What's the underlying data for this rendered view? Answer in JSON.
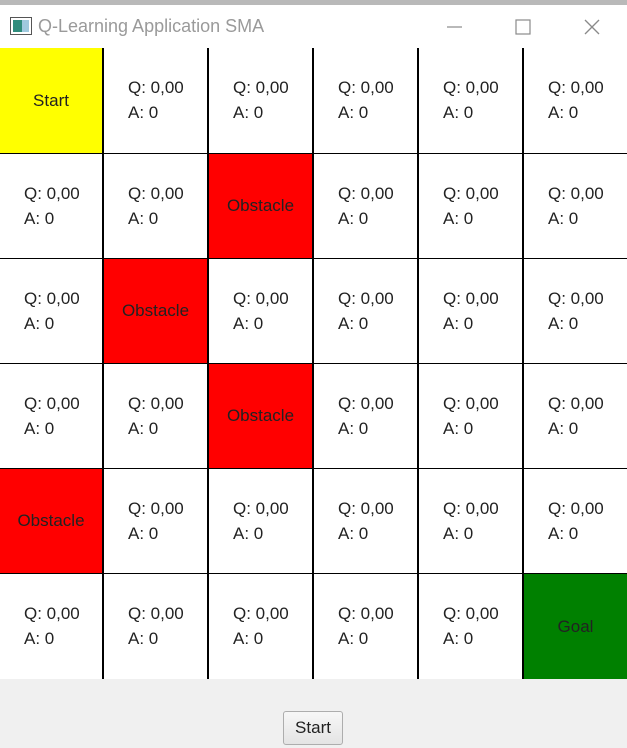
{
  "window": {
    "title": "Q-Learning Application SMA",
    "icon": "app-window-icon",
    "controls": [
      "minimize-icon",
      "maximize-icon",
      "close-icon"
    ]
  },
  "colors": {
    "start": "#ffff00",
    "obstacle": "#ff0000",
    "goal": "#008000",
    "empty": "#ffffff",
    "grid_lines": "#000000"
  },
  "grid": {
    "rows": [
      [
        {
          "type": "start",
          "label": "Start"
        },
        {
          "type": "empty",
          "q": "Q: 0,00",
          "a": "A: 0"
        },
        {
          "type": "empty",
          "q": "Q: 0,00",
          "a": "A: 0"
        },
        {
          "type": "empty",
          "q": "Q: 0,00",
          "a": "A: 0"
        },
        {
          "type": "empty",
          "q": "Q: 0,00",
          "a": "A: 0"
        },
        {
          "type": "empty",
          "q": "Q: 0,00",
          "a": "A: 0"
        }
      ],
      [
        {
          "type": "empty",
          "q": "Q: 0,00",
          "a": "A: 0"
        },
        {
          "type": "empty",
          "q": "Q: 0,00",
          "a": "A: 0"
        },
        {
          "type": "obstacle",
          "label": "Obstacle"
        },
        {
          "type": "empty",
          "q": "Q: 0,00",
          "a": "A: 0"
        },
        {
          "type": "empty",
          "q": "Q: 0,00",
          "a": "A: 0"
        },
        {
          "type": "empty",
          "q": "Q: 0,00",
          "a": "A: 0"
        }
      ],
      [
        {
          "type": "empty",
          "q": "Q: 0,00",
          "a": "A: 0"
        },
        {
          "type": "obstacle",
          "label": "Obstacle"
        },
        {
          "type": "empty",
          "q": "Q: 0,00",
          "a": "A: 0"
        },
        {
          "type": "empty",
          "q": "Q: 0,00",
          "a": "A: 0"
        },
        {
          "type": "empty",
          "q": "Q: 0,00",
          "a": "A: 0"
        },
        {
          "type": "empty",
          "q": "Q: 0,00",
          "a": "A: 0"
        }
      ],
      [
        {
          "type": "empty",
          "q": "Q: 0,00",
          "a": "A: 0"
        },
        {
          "type": "empty",
          "q": "Q: 0,00",
          "a": "A: 0"
        },
        {
          "type": "obstacle",
          "label": "Obstacle"
        },
        {
          "type": "empty",
          "q": "Q: 0,00",
          "a": "A: 0"
        },
        {
          "type": "empty",
          "q": "Q: 0,00",
          "a": "A: 0"
        },
        {
          "type": "empty",
          "q": "Q: 0,00",
          "a": "A: 0"
        }
      ],
      [
        {
          "type": "obstacle",
          "label": "Obstacle"
        },
        {
          "type": "empty",
          "q": "Q: 0,00",
          "a": "A: 0"
        },
        {
          "type": "empty",
          "q": "Q: 0,00",
          "a": "A: 0"
        },
        {
          "type": "empty",
          "q": "Q: 0,00",
          "a": "A: 0"
        },
        {
          "type": "empty",
          "q": "Q: 0,00",
          "a": "A: 0"
        },
        {
          "type": "empty",
          "q": "Q: 0,00",
          "a": "A: 0"
        }
      ],
      [
        {
          "type": "empty",
          "q": "Q: 0,00",
          "a": "A: 0"
        },
        {
          "type": "empty",
          "q": "Q: 0,00",
          "a": "A: 0"
        },
        {
          "type": "empty",
          "q": "Q: 0,00",
          "a": "A: 0"
        },
        {
          "type": "empty",
          "q": "Q: 0,00",
          "a": "A: 0"
        },
        {
          "type": "empty",
          "q": "Q: 0,00",
          "a": "A: 0"
        },
        {
          "type": "goal",
          "label": "Goal"
        }
      ]
    ]
  },
  "controls": {
    "start_button_label": "Start"
  }
}
